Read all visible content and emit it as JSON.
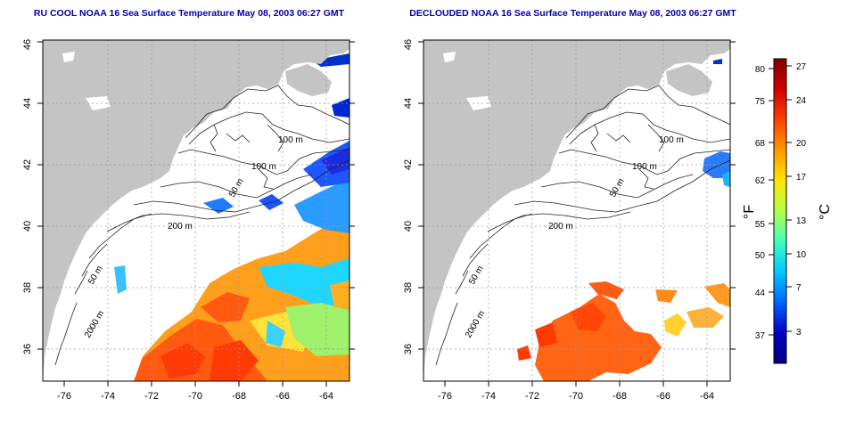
{
  "panels": [
    {
      "title": "RU COOL NOAA 16 Sea Surface Temperature May 08, 2003 06:27 GMT"
    },
    {
      "title": "DECLOUDED NOAA 16 Sea Surface Temperature May 08, 2003 06:27 GMT"
    }
  ],
  "x_ticks": [
    "-76",
    "-74",
    "-72",
    "-70",
    "-68",
    "-66",
    "-64"
  ],
  "y_ticks": [
    "36",
    "38",
    "40",
    "42",
    "44",
    "46"
  ],
  "contour_labels": {
    "left": [
      "100 m",
      "100 m",
      "50 m",
      "200 m",
      "50 m",
      "2000 m"
    ],
    "right": [
      "100 m",
      "100 m",
      "50 m",
      "200 m",
      "50 m",
      "2000 m"
    ]
  },
  "colorbar": {
    "fahrenheit_ticks": [
      "80",
      "75",
      "68",
      "62",
      "55",
      "50",
      "44",
      "37"
    ],
    "celsius_ticks": [
      "27",
      "24",
      "20",
      "17",
      "13",
      "10",
      "7",
      "3"
    ],
    "f_unit": "°F",
    "c_unit": "°C",
    "colors": [
      "#800000",
      "#d40000",
      "#ff4000",
      "#ff9900",
      "#ffe600",
      "#b4ff4a",
      "#3fffbf",
      "#00c8ff",
      "#0064ff",
      "#0000c8",
      "#000080"
    ]
  },
  "colors": {
    "land": "#c4c4c4",
    "title": "#0000aa",
    "grid": "#9a9a9a"
  }
}
